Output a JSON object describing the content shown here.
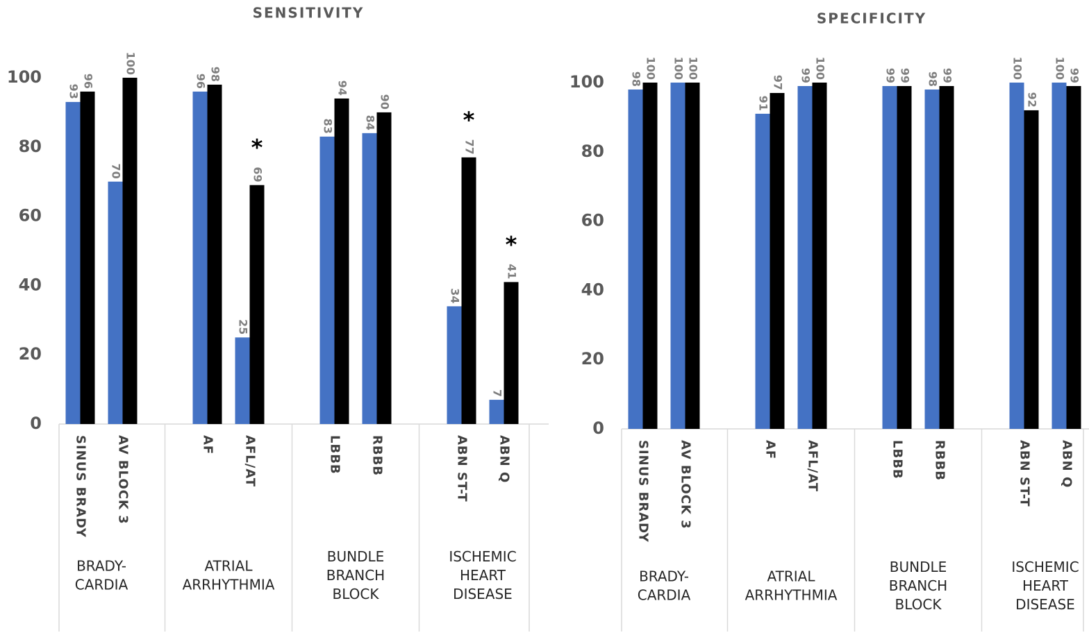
{
  "chart_data": [
    {
      "type": "bar",
      "title": "SENSITIVITY",
      "groups": [
        {
          "label": [
            "BRADY-",
            "CARDIA"
          ],
          "categories": [
            "SINUS BRADY",
            "AV BLOCK 3"
          ]
        },
        {
          "label": [
            "ATRIAL",
            "ARRHYTHMIA"
          ],
          "categories": [
            "AF",
            "AFL/AT"
          ]
        },
        {
          "label": [
            "BUNDLE",
            "BRANCH",
            "BLOCK"
          ],
          "categories": [
            "LBBB",
            "RBBB"
          ]
        },
        {
          "label": [
            "ISCHEMIC",
            "HEART",
            "DISEASE"
          ],
          "categories": [
            "ABN ST-T",
            "ABN Q"
          ]
        }
      ],
      "series": [
        {
          "color": "#4472c4",
          "values": [
            93,
            70,
            96,
            25,
            83,
            84,
            34,
            7
          ]
        },
        {
          "color": "#000000",
          "values": [
            96,
            100,
            98,
            69,
            94,
            90,
            77,
            41
          ],
          "markers": [
            null,
            null,
            null,
            "*",
            null,
            null,
            "*",
            "*"
          ]
        }
      ],
      "ylim": [
        0,
        100
      ],
      "yticks": [
        0,
        20,
        40,
        60,
        80,
        100
      ]
    },
    {
      "type": "bar",
      "title": "SPECIFICITY",
      "groups": [
        {
          "label": [
            "BRADY-",
            "CARDIA"
          ],
          "categories": [
            "SINUS BRADY",
            "AV BLOCK 3"
          ]
        },
        {
          "label": [
            "ATRIAL",
            "ARRHYTHMIA"
          ],
          "categories": [
            "AF",
            "AFL/AT"
          ]
        },
        {
          "label": [
            "BUNDLE",
            "BRANCH",
            "BLOCK"
          ],
          "categories": [
            "LBBB",
            "RBBB"
          ]
        },
        {
          "label": [
            "ISCHEMIC",
            "HEART",
            "DISEASE"
          ],
          "categories": [
            "ABN ST-T",
            "ABN Q"
          ]
        }
      ],
      "series": [
        {
          "color": "#4472c4",
          "values": [
            98,
            100,
            91,
            99,
            99,
            98,
            100,
            100
          ]
        },
        {
          "color": "#000000",
          "values": [
            100,
            100,
            97,
            100,
            99,
            99,
            92,
            99
          ]
        }
      ],
      "ylim": [
        0,
        100
      ],
      "yticks": [
        0,
        20,
        40,
        60,
        80,
        100
      ]
    }
  ]
}
